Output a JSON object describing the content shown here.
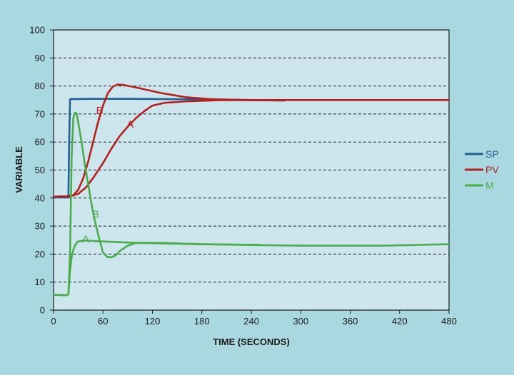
{
  "chart_data": {
    "type": "line",
    "xlabel": "TIME (SECONDS)",
    "ylabel": "VARIABLE",
    "xlim": [
      0,
      480
    ],
    "ylim": [
      0,
      100
    ],
    "x_ticks": [
      0,
      60,
      120,
      180,
      240,
      300,
      360,
      420,
      480
    ],
    "y_ticks": [
      0,
      10,
      20,
      30,
      40,
      50,
      60,
      70,
      80,
      90,
      100
    ],
    "grid": "horizontal dashed",
    "legend_position": "right",
    "colors": {
      "SP": "#1f5f94",
      "PV": "#b5201d",
      "M": "#4aac4a"
    },
    "series": [
      {
        "name": "SP",
        "color": "#1f5f94",
        "x": [
          0,
          18,
          19,
          20,
          40,
          100,
          200,
          280
        ],
        "y": [
          40.2,
          40.2,
          60,
          75.3,
          75.4,
          75.4,
          75.2,
          74.8
        ]
      },
      {
        "name": "PV",
        "curve": "B",
        "color": "#b5201d",
        "x": [
          0,
          15,
          24,
          30,
          36,
          42,
          48,
          54,
          60,
          66,
          72,
          78,
          84,
          100,
          130,
          160,
          190,
          230,
          280
        ],
        "y": [
          40.5,
          40.6,
          41.0,
          43.0,
          47.0,
          53.0,
          60.0,
          67.0,
          73.0,
          77.5,
          79.8,
          80.5,
          80.4,
          79.5,
          77.5,
          76.0,
          75.3,
          75.0,
          74.8
        ]
      },
      {
        "name": "PV",
        "curve": "A",
        "color": "#b5201d",
        "x": [
          0,
          20,
          30,
          40,
          50,
          60,
          70,
          80,
          90,
          100,
          110,
          120,
          135,
          160,
          200,
          260,
          320,
          400,
          480
        ],
        "y": [
          40.5,
          40.6,
          41.5,
          44.0,
          48.0,
          52.5,
          57.5,
          62.0,
          65.5,
          68.5,
          71.0,
          73.0,
          74.0,
          74.5,
          74.9,
          75.0,
          75.0,
          75.0,
          75.0
        ]
      },
      {
        "name": "M",
        "curve": "B",
        "color": "#4aac4a",
        "x": [
          0,
          15,
          18,
          20,
          22,
          24,
          26,
          28,
          30,
          34,
          38,
          42,
          46,
          50,
          55,
          60,
          65,
          70,
          75,
          80,
          90,
          100,
          130,
          180,
          250
        ],
        "y": [
          5.5,
          5.3,
          5.6,
          20,
          55,
          68.5,
          70.5,
          70.2,
          67,
          60,
          52,
          45,
          38,
          32,
          26,
          20.5,
          19,
          18.8,
          19.5,
          21,
          23,
          24,
          24.0,
          23.5,
          23.3
        ]
      },
      {
        "name": "M",
        "curve": "A",
        "color": "#4aac4a",
        "x": [
          0,
          15,
          18,
          20,
          22,
          24,
          26,
          28,
          30,
          35,
          40,
          60,
          100,
          200,
          300,
          400,
          480
        ],
        "y": [
          5.5,
          5.3,
          5.6,
          14,
          19,
          21.5,
          23,
          24,
          24.5,
          24.8,
          24.8,
          24.5,
          24.0,
          23.4,
          23.0,
          23.0,
          23.5
        ]
      }
    ],
    "annotations": [
      {
        "text": "B",
        "series": "PV",
        "x": 56,
        "y": 70,
        "color": "#b5201d"
      },
      {
        "text": "A",
        "series": "PV",
        "x": 93,
        "y": 65,
        "color": "#b5201d"
      },
      {
        "text": "B",
        "series": "M",
        "x": 51,
        "y": 33,
        "color": "#4aac4a"
      },
      {
        "text": "A",
        "series": "M",
        "x": 39,
        "y": 24,
        "color": "#4aac4a"
      }
    ],
    "legend": [
      "SP",
      "PV",
      "M"
    ]
  }
}
